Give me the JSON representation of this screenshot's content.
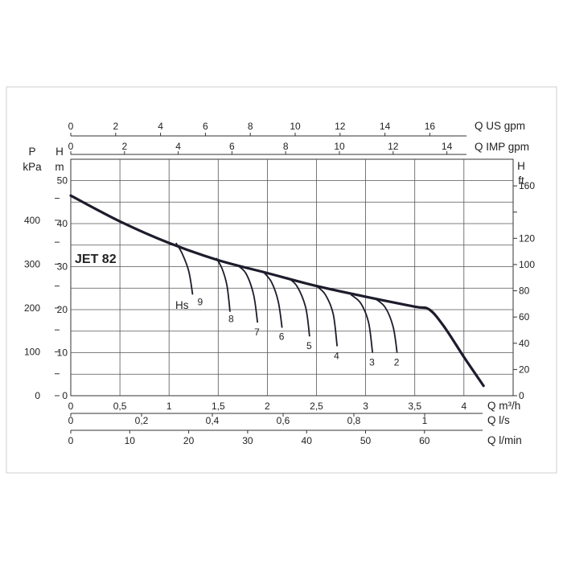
{
  "chart_data": {
    "type": "line",
    "title": "JET 82",
    "x_axes": {
      "m3h": {
        "label": "Q m³/h",
        "min": 0,
        "max": 4.5,
        "ticks": [
          0,
          0.5,
          1,
          1.5,
          2,
          2.5,
          3,
          3.5,
          4
        ],
        "tick_labels": [
          "0",
          "0,5",
          "1",
          "1,5",
          "2",
          "2,5",
          "3",
          "3,5",
          "4"
        ]
      },
      "ls": {
        "label": "Q l/s",
        "ticks": [
          0,
          0.2,
          0.4,
          0.6,
          0.8,
          1
        ],
        "tick_labels": [
          "0",
          "0,2",
          "0,4",
          "0,6",
          "0,8",
          "1"
        ]
      },
      "lmin": {
        "label": "Q l/min",
        "ticks": [
          0,
          10,
          20,
          30,
          40,
          50,
          60
        ],
        "tick_labels": [
          "0",
          "10",
          "20",
          "30",
          "40",
          "50",
          "60"
        ]
      },
      "usgpm": {
        "label": "Q US gpm",
        "ticks": [
          0,
          2,
          4,
          6,
          8,
          10,
          12,
          14,
          16
        ],
        "tick_labels": [
          "0",
          "2",
          "4",
          "6",
          "8",
          "10",
          "12",
          "14",
          "16"
        ]
      },
      "impgpm": {
        "label": "Q IMP gpm",
        "ticks": [
          0,
          2,
          4,
          6,
          8,
          10,
          12,
          14
        ],
        "tick_labels": [
          "0",
          "2",
          "4",
          "6",
          "8",
          "10",
          "12",
          "14"
        ]
      }
    },
    "y_axes": {
      "kpa": {
        "label_top": "P",
        "label": "kPa",
        "ticks": [
          0,
          100,
          200,
          300,
          400
        ],
        "tick_labels": [
          "0",
          "100",
          "200",
          "300",
          "400"
        ]
      },
      "m": {
        "label_top": "H",
        "label": "m",
        "min": 0,
        "max": 50,
        "ticks": [
          0,
          10,
          20,
          30,
          40,
          50
        ],
        "tick_labels": [
          "0",
          "10",
          "20",
          "30",
          "40",
          "50"
        ]
      },
      "ft": {
        "label_top": "H",
        "label": "ft",
        "ticks": [
          0,
          20,
          40,
          60,
          80,
          100,
          120,
          160
        ],
        "tick_labels": [
          "0",
          "20",
          "40",
          "60",
          "80",
          "100",
          "120",
          "160"
        ]
      }
    },
    "grid": true,
    "main_curve": {
      "x": [
        0,
        0.5,
        1,
        1.5,
        2,
        2.5,
        3,
        3.5,
        3.65,
        3.8,
        4,
        4.2
      ],
      "y": [
        46.5,
        40.5,
        35.5,
        31.5,
        28.5,
        25.5,
        23,
        20.7,
        20,
        16,
        9,
        2.3
      ]
    },
    "hs_label": "Hs",
    "suction_curves": [
      {
        "label": "9",
        "x": [
          1.07,
          1.13,
          1.2,
          1.24
        ],
        "y": [
          35.5,
          33.2,
          29,
          23.5
        ]
      },
      {
        "label": "8",
        "x": [
          1.48,
          1.54,
          1.59,
          1.62
        ],
        "y": [
          32,
          29.5,
          25.5,
          19.5
        ]
      },
      {
        "label": "7",
        "x": [
          1.68,
          1.78,
          1.86,
          1.9
        ],
        "y": [
          30.5,
          28.5,
          23.5,
          17
        ]
      },
      {
        "label": "6",
        "x": [
          1.95,
          2.04,
          2.11,
          2.15
        ],
        "y": [
          29,
          26.5,
          22,
          15.8
        ]
      },
      {
        "label": "5",
        "x": [
          2.2,
          2.3,
          2.39,
          2.43
        ],
        "y": [
          27.5,
          25.5,
          20.5,
          13.8
        ]
      },
      {
        "label": "4",
        "x": [
          2.5,
          2.59,
          2.67,
          2.71
        ],
        "y": [
          25.5,
          23.5,
          19,
          11.5
        ]
      },
      {
        "label": "3",
        "x": [
          2.85,
          2.95,
          3.03,
          3.07
        ],
        "y": [
          23.5,
          21.5,
          17,
          10
        ]
      },
      {
        "label": "2",
        "x": [
          3.1,
          3.2,
          3.28,
          3.32
        ],
        "y": [
          22.5,
          20.5,
          16,
          10
        ]
      }
    ]
  }
}
